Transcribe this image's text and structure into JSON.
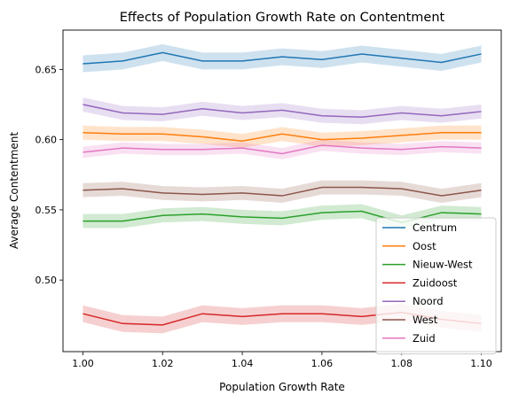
{
  "chart_data": {
    "type": "line",
    "title": "Effects of Population Growth Rate on Contentment",
    "xlabel": "Population Growth Rate",
    "ylabel": "Average Contentment",
    "xlim": [
      0.995,
      1.105
    ],
    "ylim": [
      0.449,
      0.678
    ],
    "xticks": [
      1.0,
      1.02,
      1.04,
      1.06,
      1.08,
      1.1
    ],
    "xtick_labels": [
      "1.00",
      "1.02",
      "1.04",
      "1.06",
      "1.08",
      "1.10"
    ],
    "yticks": [
      0.5,
      0.55,
      0.6,
      0.65
    ],
    "ytick_labels": [
      "0.50",
      "0.55",
      "0.60",
      "0.65"
    ],
    "grid": false,
    "legend_position": "lower-right",
    "x": [
      1.0,
      1.01,
      1.02,
      1.03,
      1.04,
      1.05,
      1.06,
      1.07,
      1.08,
      1.09,
      1.1
    ],
    "series": [
      {
        "name": "Centrum",
        "color": "#1f77b4",
        "band": 0.006,
        "values": [
          0.654,
          0.656,
          0.662,
          0.656,
          0.656,
          0.659,
          0.657,
          0.661,
          0.658,
          0.655,
          0.661
        ]
      },
      {
        "name": "Oost",
        "color": "#ff7f0e",
        "band": 0.005,
        "values": [
          0.605,
          0.604,
          0.604,
          0.602,
          0.599,
          0.604,
          0.6,
          0.601,
          0.603,
          0.605,
          0.605
        ]
      },
      {
        "name": "Nieuw-West",
        "color": "#2ca02c",
        "band": 0.005,
        "values": [
          0.542,
          0.542,
          0.546,
          0.547,
          0.545,
          0.544,
          0.548,
          0.549,
          0.541,
          0.548,
          0.547
        ]
      },
      {
        "name": "Zuidoost",
        "color": "#d62728",
        "band": 0.006,
        "values": [
          0.476,
          0.469,
          0.468,
          0.476,
          0.474,
          0.476,
          0.476,
          0.474,
          0.477,
          0.472,
          0.469
        ]
      },
      {
        "name": "Noord",
        "color": "#9467bd",
        "band": 0.005,
        "values": [
          0.625,
          0.619,
          0.618,
          0.622,
          0.619,
          0.621,
          0.617,
          0.616,
          0.619,
          0.617,
          0.62
        ]
      },
      {
        "name": "West",
        "color": "#8c564b",
        "band": 0.005,
        "values": [
          0.564,
          0.565,
          0.562,
          0.561,
          0.562,
          0.56,
          0.566,
          0.566,
          0.565,
          0.56,
          0.564
        ]
      },
      {
        "name": "Zuid",
        "color": "#e377c2",
        "band": 0.004,
        "values": [
          0.591,
          0.594,
          0.593,
          0.593,
          0.594,
          0.59,
          0.596,
          0.594,
          0.593,
          0.595,
          0.594
        ]
      }
    ]
  }
}
